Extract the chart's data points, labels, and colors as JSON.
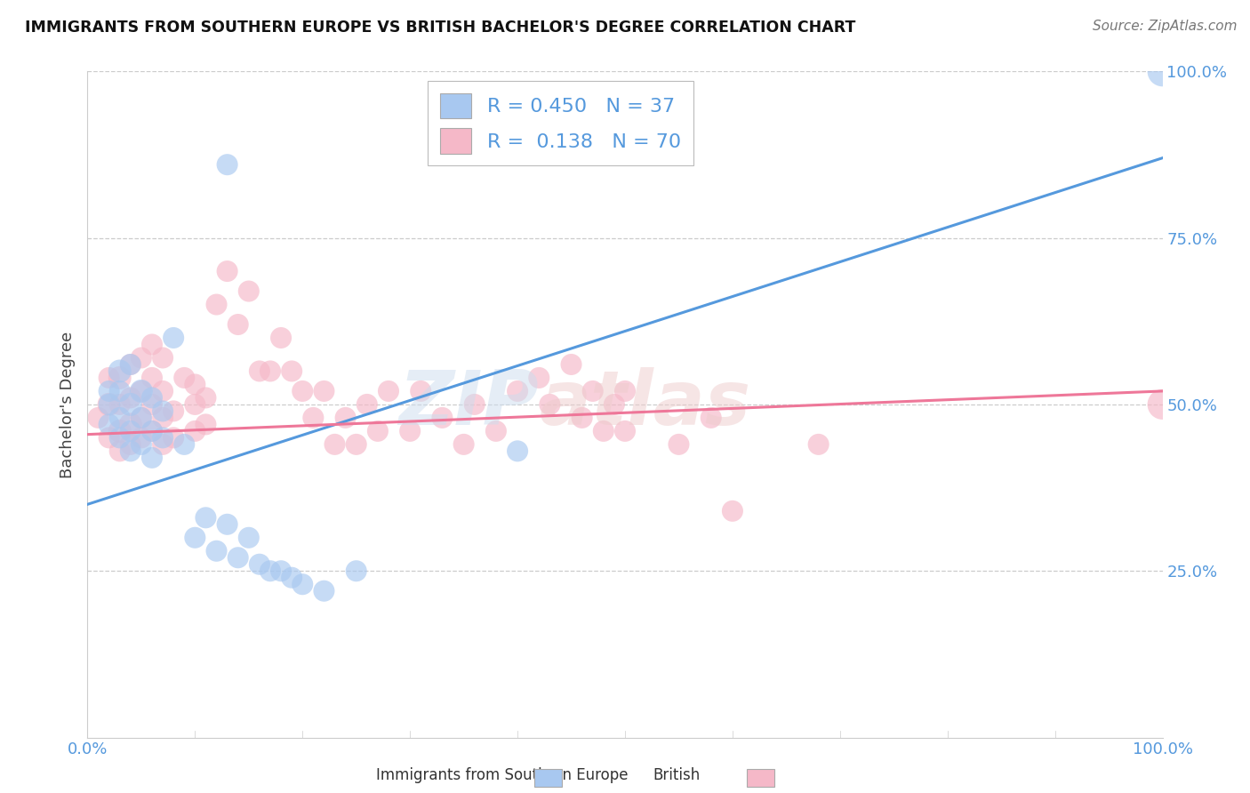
{
  "title": "IMMIGRANTS FROM SOUTHERN EUROPE VS BRITISH BACHELOR'S DEGREE CORRELATION CHART",
  "source": "Source: ZipAtlas.com",
  "ylabel": "Bachelor's Degree",
  "xlim": [
    0,
    1
  ],
  "ylim": [
    0,
    1
  ],
  "ytick_labels": [
    "25.0%",
    "50.0%",
    "75.0%",
    "100.0%"
  ],
  "ytick_values": [
    0.25,
    0.5,
    0.75,
    1.0
  ],
  "blue_R": 0.45,
  "blue_N": 37,
  "pink_R": 0.138,
  "pink_N": 70,
  "blue_color": "#a8c8f0",
  "pink_color": "#f5b8c8",
  "line_blue": "#5599dd",
  "line_pink": "#ee7799",
  "watermark_zip": "ZIP",
  "watermark_atlas": "atlas",
  "background_color": "#ffffff",
  "grid_color": "#cccccc",
  "label_color": "#5599dd",
  "blue_line_endpoints": [
    0,
    1,
    0.35,
    0.87
  ],
  "pink_line_endpoints": [
    0,
    1,
    0.455,
    0.52
  ],
  "blue_scatter": [
    [
      0.02,
      0.47
    ],
    [
      0.02,
      0.5
    ],
    [
      0.02,
      0.52
    ],
    [
      0.03,
      0.45
    ],
    [
      0.03,
      0.48
    ],
    [
      0.03,
      0.52
    ],
    [
      0.03,
      0.55
    ],
    [
      0.04,
      0.43
    ],
    [
      0.04,
      0.46
    ],
    [
      0.04,
      0.5
    ],
    [
      0.04,
      0.56
    ],
    [
      0.05,
      0.44
    ],
    [
      0.05,
      0.48
    ],
    [
      0.05,
      0.52
    ],
    [
      0.06,
      0.42
    ],
    [
      0.06,
      0.46
    ],
    [
      0.06,
      0.51
    ],
    [
      0.07,
      0.45
    ],
    [
      0.07,
      0.49
    ],
    [
      0.08,
      0.6
    ],
    [
      0.09,
      0.44
    ],
    [
      0.1,
      0.3
    ],
    [
      0.11,
      0.33
    ],
    [
      0.12,
      0.28
    ],
    [
      0.13,
      0.32
    ],
    [
      0.14,
      0.27
    ],
    [
      0.15,
      0.3
    ],
    [
      0.16,
      0.26
    ],
    [
      0.17,
      0.25
    ],
    [
      0.18,
      0.25
    ],
    [
      0.19,
      0.24
    ],
    [
      0.2,
      0.23
    ],
    [
      0.22,
      0.22
    ],
    [
      0.25,
      0.25
    ],
    [
      0.4,
      0.43
    ],
    [
      0.13,
      0.86
    ],
    [
      1.0,
      1.0
    ]
  ],
  "blue_sizes": [
    300,
    300,
    300,
    300,
    300,
    300,
    350,
    300,
    300,
    350,
    300,
    300,
    300,
    350,
    300,
    300,
    300,
    300,
    300,
    300,
    300,
    300,
    300,
    300,
    300,
    300,
    300,
    300,
    300,
    300,
    300,
    300,
    300,
    300,
    300,
    300,
    600
  ],
  "pink_scatter": [
    [
      0.01,
      0.48
    ],
    [
      0.02,
      0.45
    ],
    [
      0.02,
      0.5
    ],
    [
      0.02,
      0.54
    ],
    [
      0.03,
      0.43
    ],
    [
      0.03,
      0.46
    ],
    [
      0.03,
      0.5
    ],
    [
      0.03,
      0.54
    ],
    [
      0.04,
      0.44
    ],
    [
      0.04,
      0.47
    ],
    [
      0.04,
      0.51
    ],
    [
      0.04,
      0.56
    ],
    [
      0.05,
      0.45
    ],
    [
      0.05,
      0.48
    ],
    [
      0.05,
      0.52
    ],
    [
      0.05,
      0.57
    ],
    [
      0.06,
      0.46
    ],
    [
      0.06,
      0.5
    ],
    [
      0.06,
      0.54
    ],
    [
      0.06,
      0.59
    ],
    [
      0.07,
      0.44
    ],
    [
      0.07,
      0.48
    ],
    [
      0.07,
      0.52
    ],
    [
      0.07,
      0.57
    ],
    [
      0.08,
      0.45
    ],
    [
      0.08,
      0.49
    ],
    [
      0.09,
      0.54
    ],
    [
      0.1,
      0.46
    ],
    [
      0.1,
      0.5
    ],
    [
      0.1,
      0.53
    ],
    [
      0.11,
      0.47
    ],
    [
      0.11,
      0.51
    ],
    [
      0.12,
      0.65
    ],
    [
      0.13,
      0.7
    ],
    [
      0.14,
      0.62
    ],
    [
      0.15,
      0.67
    ],
    [
      0.16,
      0.55
    ],
    [
      0.17,
      0.55
    ],
    [
      0.18,
      0.6
    ],
    [
      0.19,
      0.55
    ],
    [
      0.2,
      0.52
    ],
    [
      0.21,
      0.48
    ],
    [
      0.22,
      0.52
    ],
    [
      0.23,
      0.44
    ],
    [
      0.24,
      0.48
    ],
    [
      0.25,
      0.44
    ],
    [
      0.26,
      0.5
    ],
    [
      0.27,
      0.46
    ],
    [
      0.28,
      0.52
    ],
    [
      0.3,
      0.46
    ],
    [
      0.31,
      0.52
    ],
    [
      0.33,
      0.48
    ],
    [
      0.35,
      0.44
    ],
    [
      0.36,
      0.5
    ],
    [
      0.38,
      0.46
    ],
    [
      0.4,
      0.52
    ],
    [
      0.42,
      0.54
    ],
    [
      0.43,
      0.5
    ],
    [
      0.45,
      0.56
    ],
    [
      0.46,
      0.48
    ],
    [
      0.47,
      0.52
    ],
    [
      0.48,
      0.46
    ],
    [
      0.49,
      0.5
    ],
    [
      0.5,
      0.46
    ],
    [
      0.5,
      0.52
    ],
    [
      0.55,
      0.44
    ],
    [
      0.58,
      0.48
    ],
    [
      0.6,
      0.34
    ],
    [
      0.68,
      0.44
    ],
    [
      1.0,
      0.5
    ]
  ],
  "pink_sizes": [
    300,
    300,
    350,
    300,
    300,
    350,
    300,
    350,
    300,
    350,
    300,
    300,
    300,
    300,
    300,
    300,
    300,
    300,
    300,
    300,
    300,
    300,
    300,
    300,
    300,
    300,
    300,
    300,
    300,
    300,
    300,
    300,
    300,
    300,
    300,
    300,
    300,
    300,
    300,
    300,
    300,
    300,
    300,
    300,
    300,
    300,
    300,
    300,
    300,
    300,
    300,
    300,
    300,
    300,
    300,
    300,
    300,
    300,
    300,
    300,
    300,
    300,
    300,
    300,
    300,
    300,
    300,
    300,
    300,
    600
  ]
}
